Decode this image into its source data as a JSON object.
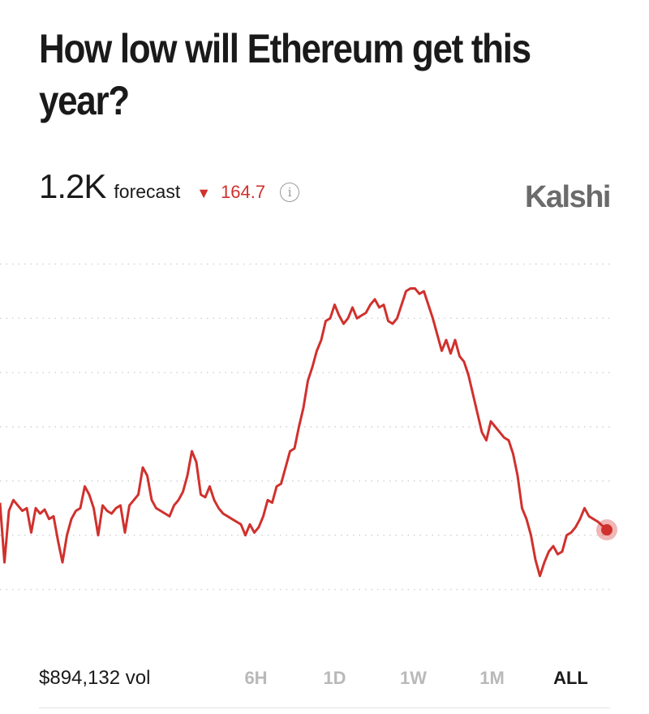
{
  "title": "How low will Ethereum get this year?",
  "forecast": {
    "value": "1.2K",
    "label": "forecast",
    "change_symbol": "▼",
    "change": "164.7",
    "info_icon": "info-icon"
  },
  "brand": "Kalshi",
  "volume": "$894,132 vol",
  "ranges": [
    "6H",
    "1D",
    "1W",
    "1M",
    "ALL"
  ],
  "active_range": "ALL",
  "colors": {
    "line": "#d0312d",
    "grid": "#cfcfcf",
    "inactive": "#b9b9b9",
    "brand": "#6b6b6b"
  },
  "chart_data": {
    "type": "line",
    "grid": true,
    "series": [
      {
        "values": [
          1320,
          1100,
          1290,
          1330,
          1310,
          1290,
          1300,
          1210,
          1300,
          1280,
          1295,
          1260,
          1270,
          1180,
          1100,
          1200,
          1260,
          1290,
          1300,
          1380,
          1350,
          1300,
          1200,
          1310,
          1290,
          1280,
          1300,
          1310,
          1210,
          1310,
          1330,
          1350,
          1450,
          1420,
          1330,
          1300,
          1290,
          1280,
          1270,
          1310,
          1330,
          1360,
          1420,
          1510,
          1470,
          1350,
          1340,
          1380,
          1330,
          1300,
          1280,
          1270,
          1260,
          1250,
          1240,
          1200,
          1240,
          1210,
          1230,
          1270,
          1330,
          1320,
          1380,
          1390,
          1450,
          1510,
          1520,
          1600,
          1670,
          1770,
          1820,
          1880,
          1920,
          1990,
          2000,
          2050,
          2010,
          1980,
          2000,
          2040,
          2000,
          2010,
          2020,
          2050,
          2070,
          2040,
          2050,
          1990,
          1980,
          2000,
          2050,
          2100,
          2110,
          2110,
          2090,
          2100,
          2050,
          2000,
          1940,
          1880,
          1920,
          1870,
          1920,
          1860,
          1840,
          1790,
          1720,
          1650,
          1580,
          1550,
          1620,
          1600,
          1580,
          1560,
          1550,
          1500,
          1420,
          1300,
          1260,
          1200,
          1110,
          1050,
          1100,
          1140,
          1160,
          1130,
          1140,
          1200,
          1210,
          1230,
          1260,
          1300,
          1270,
          1260,
          1250,
          1235,
          1220
        ]
      }
    ],
    "ylim": [
      900,
      2300
    ]
  }
}
